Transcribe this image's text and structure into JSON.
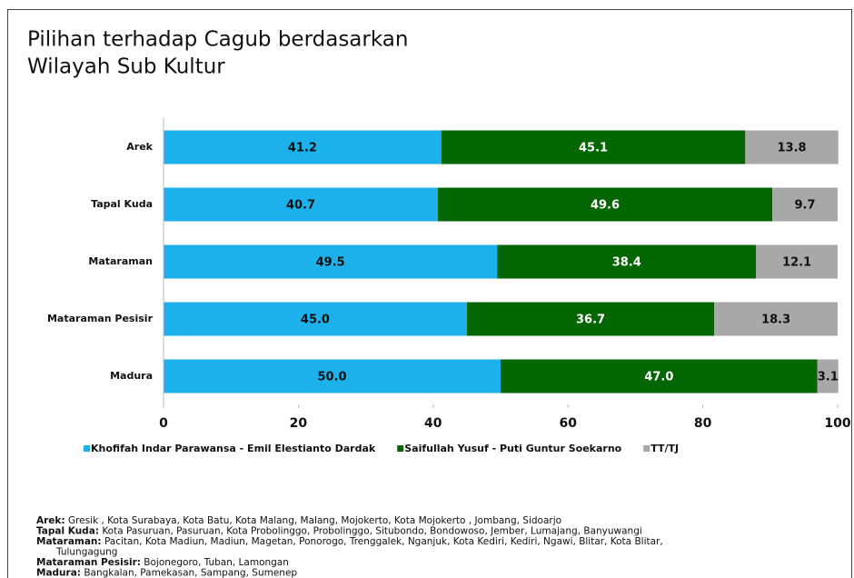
{
  "chart_data": {
    "type": "stacked-barh",
    "title": [
      "Pilihan terhadap Cagub berdasarkan",
      "Wilayah Sub Kultur"
    ],
    "categories": [
      "Arek",
      "Tapal Kuda",
      "Mataraman",
      "Mataraman Pesisir",
      "Madura"
    ],
    "series": [
      {
        "name": "Khofifah Indar Parawansa - Emil Elestianto Dardak",
        "color": "#1cb1ea",
        "text_color": "#111111",
        "values": [
          41.2,
          40.7,
          49.5,
          45.0,
          50.0
        ],
        "value_labels": [
          "41.2",
          "40.7",
          "49.5",
          "45.0",
          "50.0"
        ]
      },
      {
        "name": "Saifullah Yusuf - Puti Guntur Soekarno",
        "color": "#036603",
        "text_color": "#ffffff",
        "values": [
          45.1,
          49.6,
          38.4,
          36.7,
          47.0
        ],
        "value_labels": [
          "45.1",
          "49.6",
          "38.4",
          "36.7",
          "47.0"
        ]
      },
      {
        "name": "TT/TJ",
        "color": "#a8a8a8",
        "text_color": "#111111",
        "values": [
          13.8,
          9.7,
          12.1,
          18.3,
          3.1
        ],
        "value_labels": [
          "13.8",
          "9.7",
          "12.1",
          "18.3",
          "3.1"
        ]
      }
    ],
    "xlim": [
      0,
      100
    ],
    "xticks": [
      0,
      20,
      40,
      60,
      80,
      100
    ],
    "legend": "bottom",
    "notes": [
      {
        "label": "Arek:",
        "text": " Gresik , Kota Surabaya, Kota Batu, Kota Malang, Malang, Mojokerto, Kota Mojokerto , Jombang, Sidoarjo"
      },
      {
        "label": "Tapal Kuda:",
        "text": " Kota Pasuruan, Pasuruan, Kota Probolinggo, Probolinggo, Situbondo, Bondowoso, Jember, Lumajang, Banyuwangi"
      },
      {
        "label": "Mataraman:",
        "text": " Pacitan, Kota Madiun, Madiun, Magetan, Ponorogo, Trenggalek, Nganjuk, Kota Kediri, Kediri, Ngawi, Blitar, Kota Blitar,"
      },
      {
        "label": null,
        "text": "Tulungagung"
      },
      {
        "label": "Mataraman Pesisir:",
        "text": " Bojonegoro, Tuban, Lamongan"
      },
      {
        "label": "Madura:",
        "text": " Bangkalan, Pamekasan, Sampang, Sumenep"
      }
    ]
  }
}
